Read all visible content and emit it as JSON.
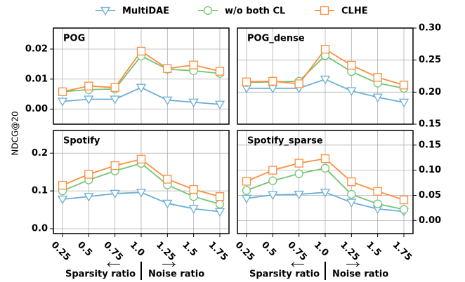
{
  "chart_data": [
    {
      "type": "line",
      "title": "POG",
      "ylabel": "NDCG@20",
      "yaxis": "left",
      "grid": true,
      "categories": [
        "0.25",
        "0.5",
        "0.75",
        "1.0",
        "1.25",
        "1.5",
        "1.75"
      ],
      "ylim": [
        -0.005,
        0.027
      ],
      "yticks": [
        {
          "value": 0,
          "label": "0.00"
        },
        0.01,
        0.02
      ],
      "series": [
        {
          "name": "MultiDAE",
          "color": "#6baed6",
          "marker": "triangle-down",
          "values": [
            0.0026,
            0.0033,
            0.0033,
            0.0072,
            0.003,
            0.0023,
            0.0016
          ]
        },
        {
          "name": "w/o both CL",
          "color": "#74c476",
          "marker": "circle",
          "values": [
            0.0058,
            0.0065,
            0.0067,
            0.0177,
            0.0133,
            0.0128,
            0.0119
          ]
        },
        {
          "name": "CLHE",
          "color": "#fd8d3c",
          "marker": "square",
          "values": [
            0.0058,
            0.0077,
            0.0072,
            0.0193,
            0.0135,
            0.0147,
            0.0126
          ]
        }
      ]
    },
    {
      "type": "line",
      "title": "POG_dense",
      "yaxis": "right",
      "grid": true,
      "categories": [
        "0.25",
        "0.5",
        "0.75",
        "1.0",
        "1.25",
        "1.5",
        "1.75"
      ],
      "ylim": [
        0.15,
        0.3
      ],
      "yticks": [
        0.15,
        {
          "value": 0.2,
          "label": "0.20"
        },
        0.25,
        {
          "value": 0.3,
          "label": "0.30"
        }
      ],
      "series": [
        {
          "name": "MultiDAE",
          "color": "#6baed6",
          "marker": "triangle-down",
          "values": [
            0.206,
            0.206,
            0.206,
            0.22,
            0.202,
            0.192,
            0.184
          ]
        },
        {
          "name": "w/o both CL",
          "color": "#74c476",
          "marker": "circle",
          "values": [
            0.215,
            0.216,
            0.217,
            0.257,
            0.232,
            0.214,
            0.206
          ]
        },
        {
          "name": "CLHE",
          "color": "#fd8d3c",
          "marker": "square",
          "values": [
            0.216,
            0.217,
            0.213,
            0.267,
            0.242,
            0.223,
            0.211
          ]
        }
      ]
    },
    {
      "type": "line",
      "title": "Spotify",
      "yaxis": "left",
      "grid": true,
      "xlabels": [
        "Sparsity ratio",
        "Noise ratio"
      ],
      "categories": [
        "0.25",
        "0.5",
        "0.75",
        "1.0",
        "1.25",
        "1.5",
        "1.75"
      ],
      "ylim": [
        -0.013,
        0.26
      ],
      "yticks": [
        {
          "value": 0,
          "label": "0.0"
        },
        0.1,
        0.2
      ],
      "series": [
        {
          "name": "MultiDAE",
          "color": "#6baed6",
          "marker": "triangle-down",
          "values": [
            0.078,
            0.085,
            0.093,
            0.096,
            0.067,
            0.053,
            0.045
          ]
        },
        {
          "name": "w/o both CL",
          "color": "#74c476",
          "marker": "circle",
          "values": [
            0.1,
            0.129,
            0.153,
            0.173,
            0.116,
            0.085,
            0.065
          ]
        },
        {
          "name": "CLHE",
          "color": "#fd8d3c",
          "marker": "square",
          "values": [
            0.115,
            0.144,
            0.167,
            0.184,
            0.131,
            0.104,
            0.085
          ]
        }
      ]
    },
    {
      "type": "line",
      "title": "Spotify_sparse",
      "yaxis": "right",
      "grid": true,
      "xlabels": [
        "Sparsity ratio",
        "Noise ratio"
      ],
      "categories": [
        "0.25",
        "0.5",
        "0.75",
        "1.0",
        "1.25",
        "1.5",
        "1.75"
      ],
      "ylim": [
        -0.026,
        0.179
      ],
      "yticks": [
        {
          "value": 0,
          "label": "0.00"
        },
        0.05,
        {
          "value": 0.1,
          "label": "0.10"
        },
        0.15
      ],
      "series": [
        {
          "name": "MultiDAE",
          "color": "#6baed6",
          "marker": "triangle-down",
          "values": [
            0.044,
            0.051,
            0.052,
            0.056,
            0.036,
            0.023,
            0.018
          ]
        },
        {
          "name": "w/o both CL",
          "color": "#74c476",
          "marker": "circle",
          "values": [
            0.06,
            0.079,
            0.093,
            0.104,
            0.052,
            0.033,
            0.022
          ]
        },
        {
          "name": "CLHE",
          "color": "#fd8d3c",
          "marker": "square",
          "values": [
            0.078,
            0.1,
            0.114,
            0.123,
            0.077,
            0.058,
            0.041
          ]
        }
      ]
    }
  ]
}
